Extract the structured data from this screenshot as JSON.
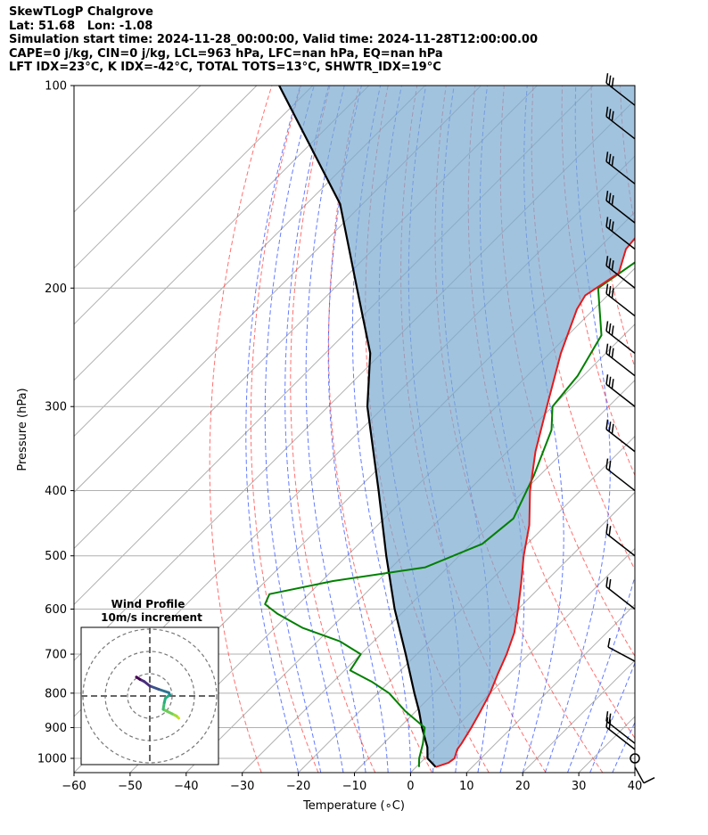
{
  "header": {
    "line1": "SkewTLogP Chalgrove",
    "line2": "Lat: 51.68   Lon: -1.08",
    "line3": "Simulation start time: 2024-11-28_00:00:00, Valid time: 2024-11-28T12:00:00.00",
    "line4": "CAPE=0 j/kg, CIN=0 j/kg, LCL=963 hPa, LFC=nan hPa, EQ=nan hPa",
    "line5": "LFT IDX=23°C, K IDX=-42°C, TOTAL TOTS=13°C, SHWTR_IDX=19°C"
  },
  "colors": {
    "temperature": "#e31a1c",
    "dewpoint": "#008000",
    "parcel": "#000000",
    "cape_fill": "#7aaad0",
    "dry_adiabat": "#ff4040",
    "moist_adiabat": "#3050ff",
    "mixing_ratio": "#7a7a7a",
    "grid": "#b0b0b0"
  },
  "chart_data": {
    "type": "line",
    "subtype": "skew-T log-P",
    "xlabel": "Temperature (∘C)",
    "ylabel": "Pressure (hPa)",
    "xlim": [
      -60,
      40
    ],
    "ylim": [
      1050,
      100
    ],
    "y_scale": "log",
    "x_ticks": [
      "−60",
      "−50",
      "−40",
      "−30",
      "−20",
      "−10",
      "0",
      "10",
      "20",
      "30",
      "40"
    ],
    "y_ticks": [
      1000,
      900,
      800,
      700,
      600,
      500,
      400,
      300,
      200,
      100
    ],
    "grid": true,
    "series": [
      {
        "key": "temperature",
        "pressure": [
          1030,
          1015,
          1000,
          970,
          950,
          900,
          850,
          800,
          750,
          700,
          650,
          600,
          550,
          500,
          450,
          400,
          350,
          300,
          250,
          215,
          205,
          190,
          175,
          160,
          145,
          130,
          115,
          100
        ],
        "values": [
          3.5,
          5,
          5.3,
          4.2,
          3.9,
          2.8,
          1.5,
          0,
          -2,
          -4,
          -6.5,
          -10,
          -14,
          -18.5,
          -23,
          -29,
          -35,
          -41,
          -48,
          -53,
          -54,
          -52,
          -55,
          -55.8,
          -54.5,
          -54,
          -51.2,
          -50
        ]
      },
      {
        "key": "dewpoint",
        "pressure": [
          1030,
          1000,
          950,
          900,
          850,
          800,
          770,
          740,
          700,
          670,
          640,
          610,
          590,
          570,
          545,
          520,
          480,
          440,
          380,
          325,
          300,
          270,
          235,
          200,
          175,
          160,
          140,
          120,
          100
        ],
        "values": [
          0.5,
          -1,
          -3,
          -5.5,
          -12,
          -18,
          -23,
          -29,
          -30,
          -36,
          -45,
          -52,
          -56,
          -57,
          -48,
          -34,
          -28,
          -27,
          -31,
          -36,
          -40,
          -41,
          -44,
          -53,
          -50,
          -54,
          -58,
          -59,
          -59
        ]
      },
      {
        "key": "parcel",
        "pressure": [
          1030,
          1000,
          963,
          900,
          850,
          800,
          700,
          600,
          500,
          400,
          300,
          250,
          200,
          150,
          100
        ],
        "values": [
          3.5,
          0.5,
          -1.5,
          -6,
          -9.5,
          -13.5,
          -22,
          -32,
          -43,
          -56,
          -73,
          -82,
          -96,
          -114,
          -146
        ]
      }
    ],
    "wind_barbs_pressure": [
      1030,
      1000,
      970,
      950,
      700,
      600,
      500,
      400,
      350,
      300,
      270,
      250,
      220,
      200,
      175,
      160,
      140,
      120,
      107
    ],
    "inset": {
      "title": "Wind Profile",
      "subtitle": "10m/s increment",
      "hodograph_u": [
        13,
        12.5,
        12,
        10,
        8,
        6,
        6.5,
        7,
        9,
        8.5,
        7,
        4,
        0,
        -2.5,
        -4.5,
        -6
      ],
      "hodograph_v": [
        -10,
        -9.5,
        -9,
        -8,
        -7,
        -6,
        -3,
        -1,
        0.5,
        1.5,
        2,
        3,
        4.5,
        6.5,
        7.5,
        8.5
      ]
    }
  }
}
